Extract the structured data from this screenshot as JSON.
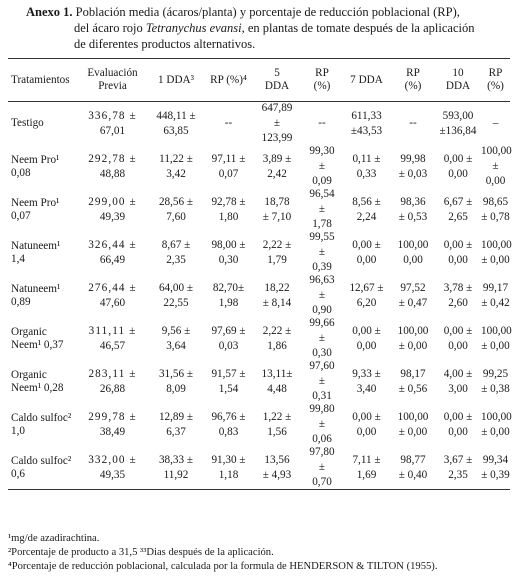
{
  "caption": {
    "label": "Anexo 1.",
    "line1": "Población media (ácaros/planta) y porcentaje de reducción poblacional (RP),",
    "line2_before": "del ácaro rojo",
    "species": "Tetranychus evansi",
    "line2_after": ", en plantas de tomate después de la aplicación",
    "line3": "de diferentes productos alternativos."
  },
  "headers": [
    [
      "Tratamientos"
    ],
    [
      "Evaluación",
      "Previa"
    ],
    [
      "1 DDA³"
    ],
    [
      "RP (%)⁴"
    ],
    [
      "5",
      "DDA"
    ],
    [
      "RP",
      "(%)"
    ],
    [
      "7 DDA"
    ],
    [
      "RP",
      "(%)"
    ],
    [
      "10",
      "DDA"
    ],
    [
      "RP",
      "(%)"
    ]
  ],
  "rows": [
    {
      "name": [
        "Testigo"
      ],
      "cells": [
        [
          "336,78 ±",
          "67,01"
        ],
        [
          "448,11 ±",
          "63,85"
        ],
        [
          "--"
        ],
        [
          "647,89",
          "±",
          "123,99"
        ],
        [
          "--"
        ],
        [
          "611,33",
          "±43,53"
        ],
        [
          "--"
        ],
        [
          "593,00",
          "±136,84"
        ],
        [
          "–"
        ]
      ]
    },
    {
      "name": [
        "Neem Pro¹",
        "0,08"
      ],
      "cells": [
        [
          "292,78 ±",
          "48,88"
        ],
        [
          "11,22 ±",
          "3,42"
        ],
        [
          "97,11 ±",
          "0,07"
        ],
        [
          "3,89 ±",
          "2,42"
        ],
        [
          "99,30",
          "±",
          "0,09"
        ],
        [
          "0,11 ±",
          "0,33"
        ],
        [
          "99,98",
          "± 0,03"
        ],
        [
          "0,00 ±",
          "0,00"
        ],
        [
          "100,00",
          "±",
          "0,00"
        ]
      ]
    },
    {
      "name": [
        "Neem Pro¹",
        "0,07"
      ],
      "cells": [
        [
          "299,00 ±",
          "49,39"
        ],
        [
          "28,56 ±",
          "7,60"
        ],
        [
          "92,78 ±",
          "1,80"
        ],
        [
          "18,78",
          "± 7,10"
        ],
        [
          "96,54",
          "±",
          "1,78"
        ],
        [
          "8,56 ±",
          "2,24"
        ],
        [
          "98,36",
          "± 0,53"
        ],
        [
          "6,67 ±",
          "2,65"
        ],
        [
          "98,65",
          "± 0,78"
        ]
      ]
    },
    {
      "name": [
        "Natuneem¹",
        "1,4"
      ],
      "cells": [
        [
          "326,44 ±",
          "66,49"
        ],
        [
          "8,67 ±",
          "2,35"
        ],
        [
          "98,00 ±",
          "0,30"
        ],
        [
          "2,22 ±",
          "1,79"
        ],
        [
          "99,55",
          "±",
          "0,39"
        ],
        [
          "0,00 ±",
          "0,00"
        ],
        [
          "100,00",
          "0,00"
        ],
        [
          "0,00 ±",
          "0,00"
        ],
        [
          "100,00",
          "± 0,00"
        ]
      ]
    },
    {
      "name": [
        "Natuneem¹",
        "0,89"
      ],
      "cells": [
        [
          "276,44 ±",
          "47,60"
        ],
        [
          "64,00 ±",
          "22,55"
        ],
        [
          "82,70±",
          "1,98"
        ],
        [
          "18,22",
          "± 8,14"
        ],
        [
          "96,63",
          "±",
          "0,90"
        ],
        [
          "12,67 ±",
          "6,20"
        ],
        [
          "97,52",
          "± 0,47"
        ],
        [
          "3,78 ±",
          "2,60"
        ],
        [
          "99,17",
          "± 0,42"
        ]
      ]
    },
    {
      "name": [
        "Organic",
        "Neem¹ 0,37"
      ],
      "cells": [
        [
          "311,11 ±",
          "46,57"
        ],
        [
          "9,56 ±",
          "3,64"
        ],
        [
          "97,69 ±",
          "0,03"
        ],
        [
          "2,22 ±",
          "1,86"
        ],
        [
          "99,66",
          "±",
          "0,30"
        ],
        [
          "0,00 ±",
          "0,00"
        ],
        [
          "100,00",
          "± 0,00"
        ],
        [
          "0,00 ±",
          "0,00"
        ],
        [
          "100,00",
          "± 0,00"
        ]
      ]
    },
    {
      "name": [
        "Organic",
        "Neem¹ 0,28"
      ],
      "cells": [
        [
          "283,11 ±",
          "26,88"
        ],
        [
          "31,56 ±",
          "8,09"
        ],
        [
          "91,57 ±",
          "1,54"
        ],
        [
          "13,11±",
          "4,48"
        ],
        [
          "97,60",
          "±",
          "0,31"
        ],
        [
          "9,33 ±",
          "3,40"
        ],
        [
          "98,17",
          "± 0,56"
        ],
        [
          "4,00 ±",
          "3,00"
        ],
        [
          "99,25",
          "± 0,38"
        ]
      ]
    },
    {
      "name": [
        "Caldo sulfoc²",
        "1,0"
      ],
      "cells": [
        [
          "299,78 ±",
          "38,49"
        ],
        [
          "12,89 ±",
          "6,37"
        ],
        [
          "96,76 ±",
          "0,83"
        ],
        [
          "1,22 ±",
          "1,56"
        ],
        [
          "99,80",
          "±",
          "0,06"
        ],
        [
          "0,00 ±",
          "0,00"
        ],
        [
          "100,00",
          "± 0,00"
        ],
        [
          "0,00 ±",
          "0,00"
        ],
        [
          "100,00",
          "± 0,00"
        ]
      ]
    },
    {
      "name": [
        "Caldo sulfoc²",
        "0,6"
      ],
      "cells": [
        [
          "332,00 ±",
          "49,35"
        ],
        [
          "38,33 ±",
          "11,92"
        ],
        [
          "91,30 ±",
          "1,18"
        ],
        [
          "13,56",
          "± 4,93"
        ],
        [
          "97,80",
          "±",
          "0,70"
        ],
        [
          "7,11 ±",
          "1,69"
        ],
        [
          "98,77",
          "± 0,40"
        ],
        [
          "3,67 ±",
          "2,35"
        ],
        [
          "99,34",
          "± 0,39"
        ]
      ]
    }
  ],
  "footnotes": [
    "¹mg/de azadirachtina.",
    "²Porcentaje de producto a 31,5 ³³Dias después de la aplicación.",
    "⁴Porcentaje de reducción poblacional, calculada por la formula de HENDERSON & TILTON (1955)."
  ]
}
